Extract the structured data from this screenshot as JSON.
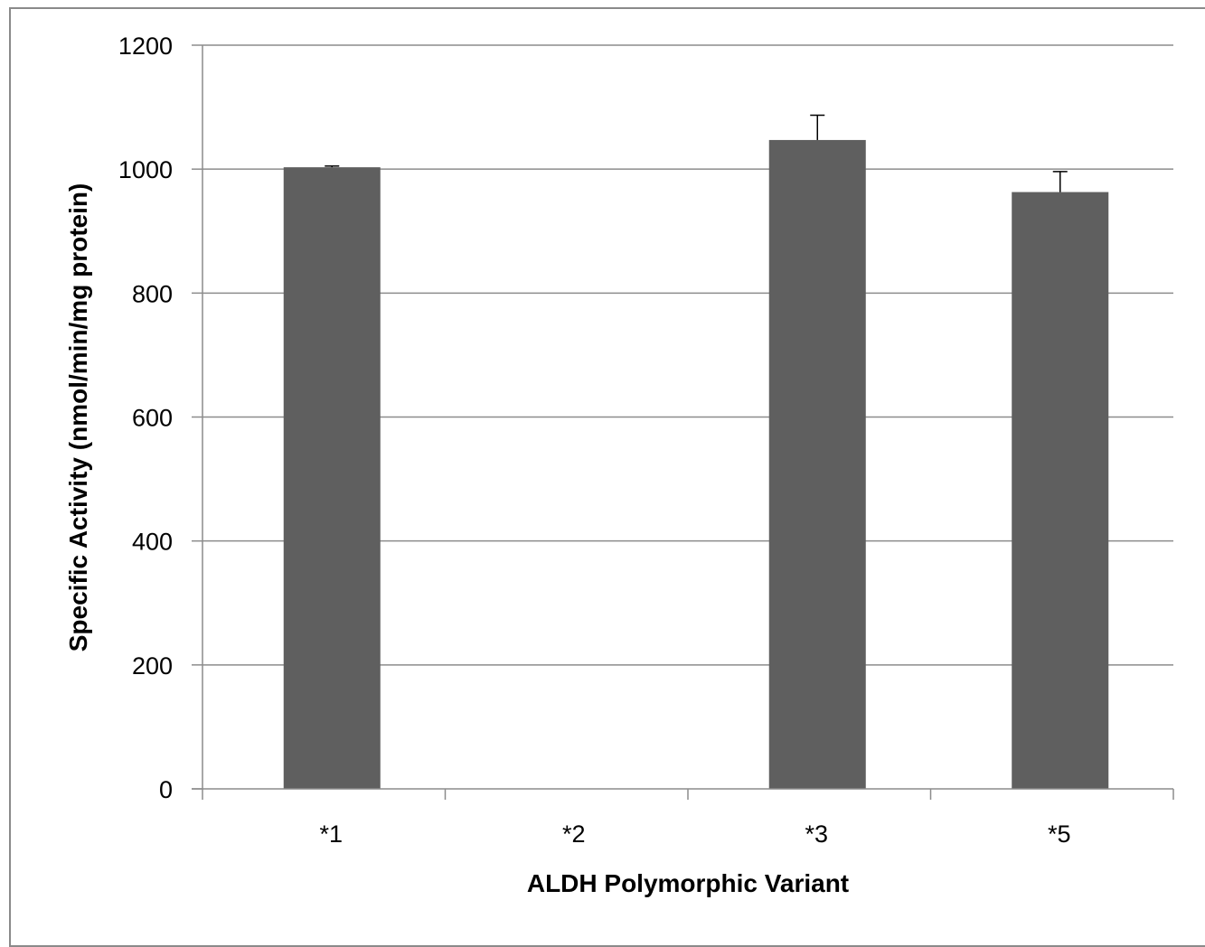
{
  "chart_data": {
    "type": "bar",
    "title": "",
    "xlabel": "ALDH Polymorphic Variant",
    "ylabel": "Specific Activity (nmol/min/mg protein)",
    "categories": [
      "*1",
      "*2",
      "*3",
      "*5"
    ],
    "values": [
      1003,
      0,
      1047,
      963
    ],
    "error_bars": [
      2,
      0,
      40,
      33
    ],
    "ylim": [
      0,
      1200
    ],
    "yticks": [
      0,
      200,
      400,
      600,
      800,
      1000,
      1200
    ],
    "ytick_labels": [
      "0",
      "200",
      "400",
      "600",
      "800",
      "1000",
      "1200"
    ],
    "grid": true,
    "legend": "none",
    "bar_color": "#5f5f5f",
    "grid_color": "#8c8c8c"
  }
}
